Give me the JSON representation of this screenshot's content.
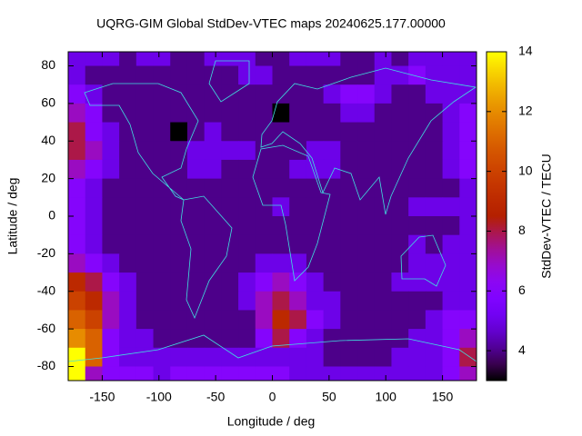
{
  "chart_data": {
    "type": "heatmap",
    "title": "UQRG-GIM Global StdDev-VTEC maps 20240625.177.00000",
    "xlabel": "Longitude / deg",
    "ylabel": "Latitude / deg",
    "colorbar_label": "StdDev-VTEC / TECU",
    "palette": "gnuplot",
    "xlim": [
      -180,
      180
    ],
    "ylim": [
      -87.5,
      87.5
    ],
    "xticks": [
      -150,
      -100,
      -50,
      0,
      50,
      100,
      150
    ],
    "yticks": [
      -80,
      -60,
      -40,
      -20,
      0,
      20,
      40,
      60,
      80
    ],
    "clim": [
      3,
      14
    ],
    "cticks": [
      4,
      6,
      8,
      10,
      12,
      14
    ],
    "x": [
      -172.5,
      -157.5,
      -142.5,
      -127.5,
      -112.5,
      -97.5,
      -82.5,
      -67.5,
      -52.5,
      -37.5,
      -22.5,
      -7.5,
      7.5,
      22.5,
      37.5,
      52.5,
      67.5,
      82.5,
      97.5,
      112.5,
      127.5,
      142.5,
      157.5,
      172.5
    ],
    "y": [
      85,
      75,
      65,
      55,
      45,
      35,
      25,
      15,
      5,
      -5,
      -15,
      -25,
      -35,
      -45,
      -55,
      -65,
      -75,
      -85
    ],
    "z": [
      [
        5,
        5,
        5,
        4,
        5,
        5,
        4,
        4,
        5,
        5,
        5,
        4,
        4,
        5,
        5,
        5,
        4,
        4,
        5,
        4,
        5,
        5,
        5,
        5
      ],
      [
        5,
        4,
        4,
        4,
        4,
        4,
        4,
        4,
        4,
        4,
        5,
        5,
        4,
        4,
        4,
        4,
        4,
        4,
        5,
        5,
        6,
        5,
        5,
        5
      ],
      [
        6,
        5,
        4,
        4,
        4,
        4,
        4,
        4,
        4,
        4,
        4,
        4,
        4,
        4,
        4,
        5,
        6,
        6,
        5,
        4,
        4,
        5,
        5,
        5
      ],
      [
        7,
        6,
        4,
        4,
        4,
        4,
        4,
        4,
        4,
        4,
        4,
        4,
        3,
        4,
        4,
        4,
        5,
        5,
        4,
        4,
        4,
        4,
        5,
        6
      ],
      [
        8,
        6,
        5,
        4,
        4,
        4,
        3,
        4,
        5,
        4,
        4,
        4,
        4,
        4,
        4,
        4,
        4,
        4,
        4,
        4,
        4,
        4,
        5,
        6
      ],
      [
        8,
        7,
        5,
        4,
        4,
        4,
        4,
        5,
        5,
        5,
        5,
        4,
        4,
        4,
        5,
        5,
        4,
        4,
        4,
        4,
        4,
        4,
        5,
        6
      ],
      [
        7,
        6,
        5,
        4,
        4,
        4,
        4,
        5,
        5,
        4,
        4,
        4,
        4,
        5,
        5,
        5,
        4,
        4,
        4,
        4,
        4,
        4,
        5,
        6
      ],
      [
        6,
        5,
        4,
        4,
        4,
        4,
        4,
        4,
        4,
        4,
        4,
        4,
        4,
        4,
        4,
        4,
        4,
        4,
        4,
        4,
        4,
        4,
        4,
        5
      ],
      [
        6,
        5,
        4,
        4,
        4,
        4,
        4,
        4,
        4,
        4,
        4,
        4,
        5,
        4,
        4,
        4,
        4,
        4,
        4,
        4,
        5,
        5,
        5,
        5
      ],
      [
        6,
        5,
        4,
        4,
        4,
        4,
        4,
        4,
        4,
        4,
        4,
        4,
        4,
        4,
        4,
        4,
        4,
        4,
        4,
        4,
        4,
        4,
        4,
        5
      ],
      [
        6,
        5,
        4,
        4,
        4,
        4,
        4,
        4,
        4,
        4,
        4,
        4,
        4,
        4,
        4,
        4,
        4,
        4,
        4,
        4,
        5,
        4,
        5,
        5
      ],
      [
        7,
        6,
        5,
        4,
        4,
        4,
        4,
        4,
        4,
        4,
        4,
        5,
        5,
        5,
        4,
        4,
        4,
        4,
        4,
        4,
        5,
        5,
        5,
        5
      ],
      [
        9,
        8,
        6,
        5,
        4,
        4,
        4,
        4,
        4,
        4,
        5,
        6,
        7,
        6,
        5,
        4,
        4,
        4,
        4,
        5,
        5,
        5,
        5,
        5
      ],
      [
        10,
        9,
        7,
        5,
        4,
        4,
        4,
        4,
        4,
        4,
        5,
        7,
        8,
        7,
        5,
        5,
        4,
        4,
        4,
        4,
        4,
        4,
        5,
        5
      ],
      [
        11,
        10,
        7,
        5,
        4,
        4,
        4,
        4,
        4,
        4,
        4,
        7,
        9,
        8,
        6,
        5,
        4,
        4,
        4,
        4,
        4,
        5,
        6,
        6
      ],
      [
        12,
        11,
        6,
        5,
        5,
        4,
        4,
        4,
        4,
        4,
        4,
        6,
        8,
        6,
        5,
        4,
        4,
        4,
        4,
        4,
        5,
        5,
        6,
        7
      ],
      [
        14,
        11,
        6,
        5,
        5,
        5,
        5,
        5,
        5,
        5,
        5,
        5,
        5,
        5,
        5,
        4,
        4,
        4,
        4,
        5,
        5,
        5,
        6,
        8
      ],
      [
        14,
        7,
        6,
        6,
        6,
        5,
        6,
        6,
        6,
        6,
        6,
        6,
        6,
        5,
        5,
        5,
        5,
        5,
        5,
        5,
        5,
        5,
        6,
        7
      ]
    ]
  }
}
